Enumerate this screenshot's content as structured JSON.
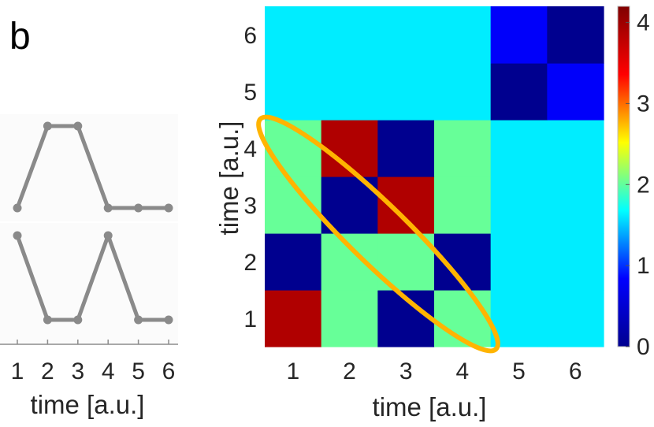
{
  "panel_label": "b",
  "colors": {
    "line": "#8a8a8a",
    "highlight": "#ffb400",
    "colormap": [
      "#00008f",
      "#0000ff",
      "#00ffff",
      "#ffff00",
      "#ff0000",
      "#800000"
    ]
  },
  "chart_data": [
    {
      "type": "line",
      "x": [
        1,
        2,
        3,
        4,
        5,
        6
      ],
      "xlabel": "time [a.u.]",
      "xticks": [
        "1",
        "2",
        "3",
        "4",
        "5",
        "6"
      ],
      "ylabel": "",
      "grid": false,
      "series": [
        {
          "values": [
            0,
            1,
            1,
            0,
            0,
            0
          ]
        },
        {
          "values": [
            1,
            0,
            0,
            1,
            0,
            0
          ]
        }
      ]
    },
    {
      "type": "heatmap",
      "x": [
        1,
        2,
        3,
        4,
        5,
        6
      ],
      "y": [
        1,
        2,
        3,
        4,
        5,
        6
      ],
      "xlabel": "time [a.u.]",
      "ylabel": "time [a.u.]",
      "xticks": [
        "1",
        "2",
        "3",
        "4",
        "5",
        "6"
      ],
      "yticks": [
        "1",
        "2",
        "3",
        "4",
        "5",
        "6"
      ],
      "values": [
        [
          4,
          2,
          0,
          2,
          1.5,
          1.5
        ],
        [
          0,
          2,
          2,
          0,
          1.5,
          1.5
        ],
        [
          2,
          0,
          4,
          2,
          1.5,
          1.5
        ],
        [
          2,
          4,
          0,
          2,
          1.5,
          1.5
        ],
        [
          1.5,
          1.5,
          1.5,
          1.5,
          0,
          0.5
        ],
        [
          1.5,
          1.5,
          1.5,
          1.5,
          0.5,
          0
        ]
      ],
      "colorbar": {
        "range": [
          0,
          4.2
        ],
        "ticks": [
          "0",
          "1",
          "2",
          "3",
          "4"
        ]
      },
      "annotation": "ellipse outlining the anti-diagonal block from (1,4) to (4,1)"
    }
  ]
}
